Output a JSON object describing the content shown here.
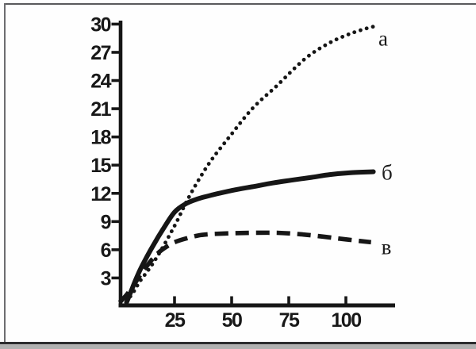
{
  "figure": {
    "background": "#fefefe",
    "frame": {
      "top_color": "#59595c",
      "left_color": "#6d6d70",
      "bottom_line_color": "#2c2c2e",
      "bottom_band_color": "#b1b1b1"
    }
  },
  "chart_data": {
    "type": "line",
    "title": "",
    "xlabel": "",
    "ylabel": "",
    "xlim": [
      0,
      122
    ],
    "ylim": [
      0,
      30.5
    ],
    "grid": false,
    "legend_position": "inline-right",
    "axis_color": "#161616",
    "curve_color": "#161616",
    "label_color": "#1c1c1c",
    "x_ticks": [
      25,
      50,
      75,
      100
    ],
    "y_ticks": [
      3,
      6,
      9,
      12,
      15,
      18,
      21,
      24,
      27,
      30
    ],
    "series": [
      {
        "name": "б",
        "style": "solid",
        "points": [
          [
            4,
            0.4
          ],
          [
            6,
            1.6
          ],
          [
            8,
            2.8
          ],
          [
            10,
            3.9
          ],
          [
            13,
            5.3
          ],
          [
            16,
            6.6
          ],
          [
            20,
            8.2
          ],
          [
            25,
            10.0
          ],
          [
            30,
            10.9
          ],
          [
            35,
            11.4
          ],
          [
            41,
            11.8
          ],
          [
            50,
            12.3
          ],
          [
            59,
            12.7
          ],
          [
            68,
            13.1
          ],
          [
            76,
            13.4
          ],
          [
            85,
            13.7
          ],
          [
            93,
            14.0
          ],
          [
            102,
            14.2
          ],
          [
            112,
            14.3
          ]
        ]
      },
      {
        "name": "а",
        "style": "dotted",
        "points": [
          [
            4,
            0.5
          ],
          [
            7,
            1.5
          ],
          [
            10,
            2.7
          ],
          [
            14,
            4.0
          ],
          [
            18,
            5.5
          ],
          [
            22,
            7.2
          ],
          [
            26,
            9.0
          ],
          [
            30,
            11.0
          ],
          [
            35,
            13.2
          ],
          [
            41,
            15.5
          ],
          [
            49,
            18.0
          ],
          [
            59,
            21.0
          ],
          [
            70,
            23.5
          ],
          [
            82,
            26.3
          ],
          [
            92,
            27.9
          ],
          [
            100,
            28.8
          ],
          [
            107,
            29.4
          ],
          [
            113,
            29.8
          ]
        ]
      },
      {
        "name": "в",
        "style": "dashed",
        "points": [
          [
            1,
            0.4
          ],
          [
            4,
            1.2
          ],
          [
            7,
            2.2
          ],
          [
            10,
            3.3
          ],
          [
            13,
            4.3
          ],
          [
            16,
            5.2
          ],
          [
            19,
            5.9
          ],
          [
            22,
            6.4
          ],
          [
            25,
            6.8
          ],
          [
            30,
            7.2
          ],
          [
            35,
            7.5
          ],
          [
            40,
            7.65
          ],
          [
            50,
            7.75
          ],
          [
            60,
            7.8
          ],
          [
            70,
            7.8
          ],
          [
            80,
            7.65
          ],
          [
            90,
            7.4
          ],
          [
            100,
            7.1
          ],
          [
            111,
            6.8
          ]
        ]
      }
    ],
    "labels": [
      {
        "text": "а",
        "x": 116.3,
        "y": 28.4
      },
      {
        "text": "б",
        "x": 118.0,
        "y": 14.2
      },
      {
        "text": "в",
        "x": 117.7,
        "y": 6.25
      }
    ]
  }
}
